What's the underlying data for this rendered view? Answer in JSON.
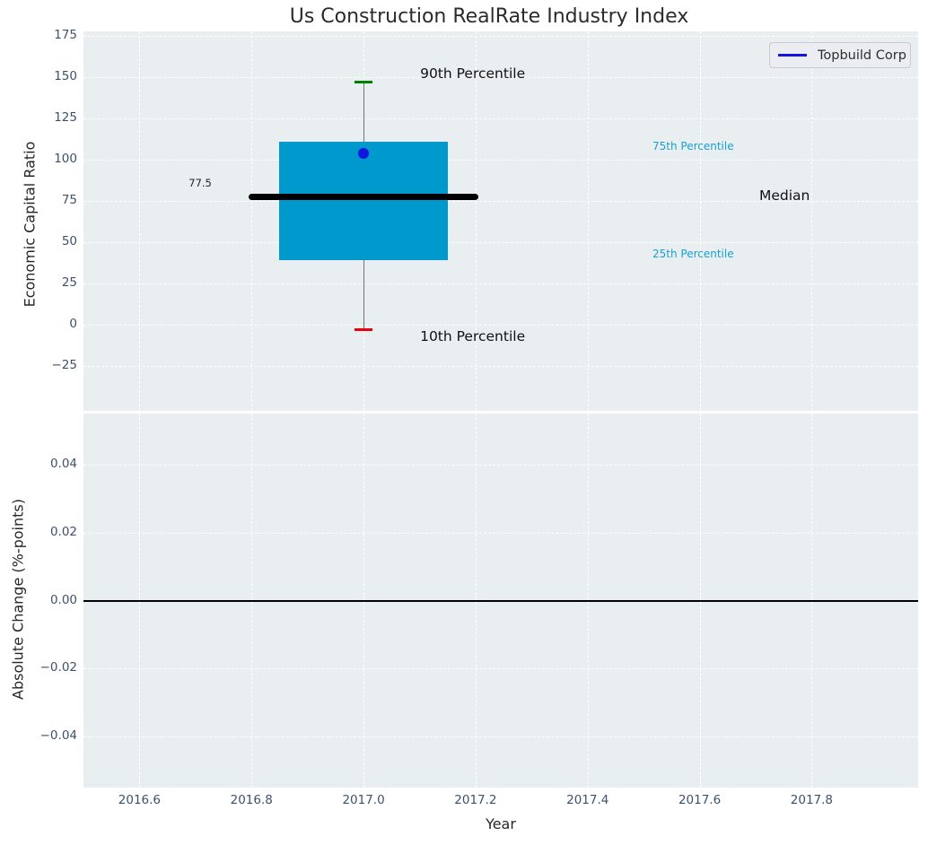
{
  "chart_data": {
    "type": "boxplot",
    "title": "Us Construction RealRate Industry Index",
    "xlabel": "Year",
    "xticks": [
      2016.6,
      2016.8,
      2017.0,
      2017.2,
      2017.4,
      2017.6,
      2017.8
    ],
    "xlim": [
      2016.5,
      2017.99
    ],
    "legend_position": "upper right",
    "grid": "dashed-white",
    "top": {
      "ylabel": "Economic Capital Ratio",
      "yticks": [
        175,
        150,
        125,
        100,
        75,
        50,
        25,
        0,
        -25
      ],
      "ylim": [
        -52,
        177.5
      ],
      "series_name": "Topbuild Corp",
      "box": {
        "year": 2017.0,
        "p90": 147,
        "p75": 111,
        "median": 77.5,
        "p25": 39,
        "p10": -3,
        "company_value": 103.5,
        "median_label": "77.5",
        "box_width_years": 0.3,
        "median_width_years": 0.41
      },
      "annotations": {
        "p90": "90th Percentile",
        "p75": "75th Percentile",
        "median": "Median",
        "p25": "25th Percentile",
        "p10": "10th Percentile"
      }
    },
    "bottom": {
      "ylabel": "Absolute Change (%-points)",
      "yticks": [
        0.04,
        0.02,
        0.0,
        -0.02,
        -0.04
      ],
      "ylim": [
        -0.055,
        0.055
      ],
      "zero_line_y": 0.0
    }
  },
  "colors": {
    "plot_background": "#e9eef0",
    "box_fill": "#0099cd",
    "median": "#000000",
    "p90_cap": "#008000",
    "p10_cap": "#e8000b",
    "company_marker": "#1414e0",
    "percentile_labels": "#18a1d0",
    "tick_labels": "#3d516b"
  }
}
